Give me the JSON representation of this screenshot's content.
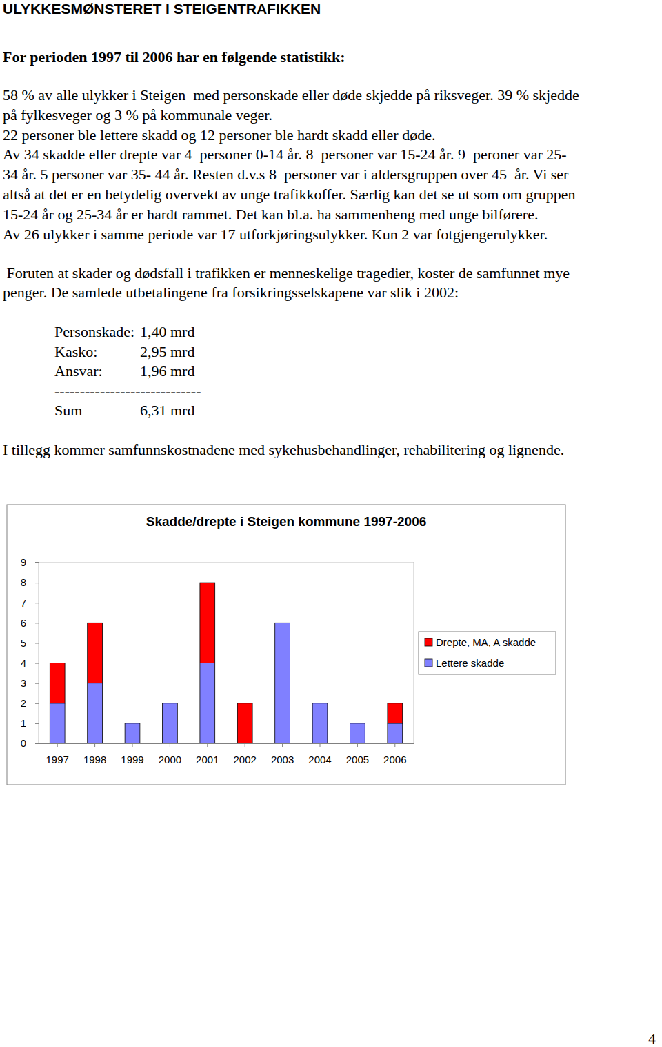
{
  "title": "ULYKKESMØNSTERET I STEIGENTRAFIKKEN",
  "subtitle": "For perioden 1997 til 2006 har en følgende statistikk:",
  "paragraphs": [
    [
      "58 % av alle ulykker i Steigen  med personskade eller døde skjedde på riksveger. 39 % skjedde",
      "på fylkesveger og 3 % på kommunale veger.",
      "22 personer ble lettere skadd og 12 personer ble hardt skadd eller døde.",
      "Av 34 skadde eller drepte var 4  personer 0-14 år. 8  personer var 15-24 år. 9  peroner var 25-",
      "34 år. 5 personer var 35- 44 år. Resten d.v.s 8  personer var i aldersgruppen over 45  år. Vi ser",
      "altså at det er en betydelig overvekt av unge trafikkoffer. Særlig kan det se ut som om gruppen",
      "15-24 år og 25-34 år er hardt rammet. Det kan bl.a. ha sammenheng med unge bilførere.",
      "Av 26 ulykker i samme periode var 17 utforkjøringsulykker. Kun 2 var fotgjengerulykker."
    ],
    [
      " Foruten at skader og dødsfall i trafikken er menneskelige tragedier, koster de samfunnet mye",
      "penger. De samlede utbetalingene fra forsikringsselskapene var slik i 2002:"
    ],
    [
      "I tillegg kommer samfunnskostnadene med sykehusbehandlinger, rehabilitering og lignende."
    ]
  ],
  "costs": {
    "rows": [
      {
        "label": "Personskade:",
        "value": "1,40 mrd"
      },
      {
        "label": "Kasko:",
        "value": "2,95 mrd"
      },
      {
        "label": "Ansvar:",
        "value": "1,96 mrd"
      }
    ],
    "separator": "-----------------------------",
    "total": {
      "label": "Sum",
      "value": "6,31 mrd"
    }
  },
  "page_number": "4",
  "chart_data": {
    "type": "bar",
    "stacked": true,
    "title": "Skadde/drepte i Steigen kommune 1997-2006",
    "categories": [
      "1997",
      "1998",
      "1999",
      "2000",
      "2001",
      "2002",
      "2003",
      "2004",
      "2005",
      "2006"
    ],
    "series": [
      {
        "name": "Drepte, MA, A skadde",
        "color": "#ff0000",
        "values": [
          2,
          3,
          0,
          0,
          4,
          2,
          0,
          0,
          0,
          1
        ]
      },
      {
        "name": "Lettere skadde",
        "color": "#8080ff",
        "values": [
          2,
          3,
          1,
          2,
          4,
          0,
          6,
          2,
          1,
          1
        ]
      }
    ],
    "ylim": [
      0,
      9
    ],
    "yticks": [
      0,
      1,
      2,
      3,
      4,
      5,
      6,
      7,
      8,
      9
    ],
    "legend": "right"
  }
}
